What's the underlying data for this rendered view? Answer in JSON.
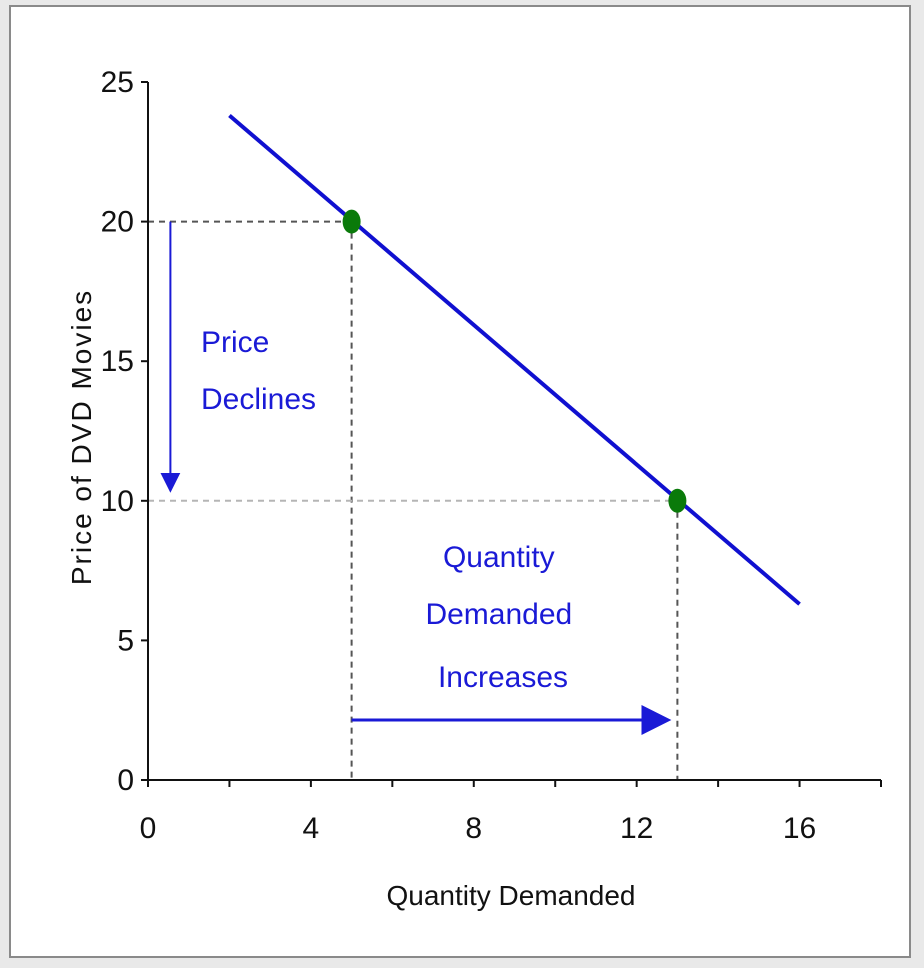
{
  "chart_data": {
    "type": "line",
    "title": "",
    "xlabel": "Quantity Demanded",
    "ylabel": "Price of DVD Movies",
    "xlim": [
      0,
      18
    ],
    "ylim": [
      0,
      25
    ],
    "x_ticks": [
      0,
      2,
      4,
      6,
      8,
      10,
      12,
      14,
      16,
      18
    ],
    "x_tick_labels": [
      {
        "value": 0,
        "label": "0"
      },
      {
        "value": 4,
        "label": "4"
      },
      {
        "value": 8,
        "label": "8"
      },
      {
        "value": 12,
        "label": "12"
      },
      {
        "value": 16,
        "label": "16"
      }
    ],
    "y_ticks": [
      0,
      5,
      10,
      15,
      20,
      25
    ],
    "y_tick_labels": [
      "0",
      "5",
      "10",
      "15",
      "20",
      "25"
    ],
    "grid": false,
    "series": [
      {
        "color": "#1010d0",
        "x": [
          2,
          16
        ],
        "y": [
          23.8,
          6.3
        ]
      }
    ],
    "points": [
      {
        "x": 5,
        "y": 20,
        "color": "#0a7a0a"
      },
      {
        "x": 13,
        "y": 10,
        "color": "#0a7a0a"
      }
    ],
    "annotations": [
      {
        "lines": [
          "Price",
          "Declines"
        ]
      },
      {
        "lines": [
          "Quantity",
          "Demanded",
          "Increases"
        ]
      }
    ],
    "colors": {
      "curve": "#1010d0",
      "points": "#0a7a0a",
      "arrows": "#1a1ad6",
      "guides": "#555555",
      "axis": "#111111"
    }
  }
}
